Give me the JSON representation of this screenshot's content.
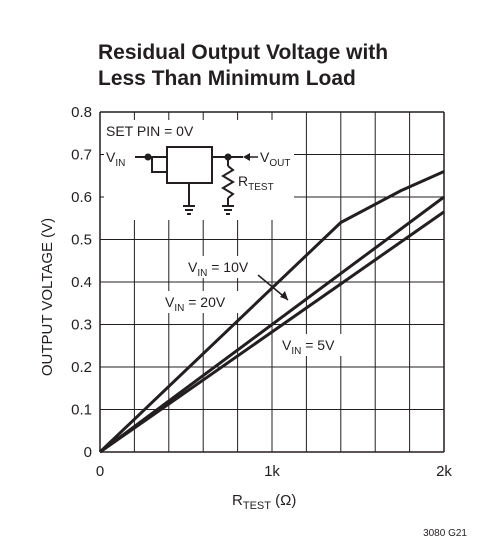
{
  "title_line1": "Residual Output Voltage with",
  "title_line2": "Less Than Minimum Load",
  "figure_code": "3080 G21",
  "inset": {
    "set_pin": "SET PIN = 0V",
    "vin": "V",
    "vin_sub": "IN",
    "vout": "V",
    "vout_sub": "OUT",
    "rtest": "R",
    "rtest_sub": "TEST"
  },
  "chart_data": {
    "type": "line",
    "xlabel_main": "R",
    "xlabel_sub": "TEST",
    "xlabel_unit": " (Ω)",
    "ylabel": "OUTPUT VOLTAGE (V)",
    "xlim": [
      0,
      2000
    ],
    "ylim": [
      0,
      0.8
    ],
    "x_ticks": [
      0,
      1000,
      2000
    ],
    "x_tick_labels": [
      "0",
      "1k",
      "2k"
    ],
    "y_ticks": [
      0,
      0.1,
      0.2,
      0.3,
      0.4,
      0.5,
      0.6,
      0.7,
      0.8
    ],
    "y_tick_labels": [
      "0",
      "0.1",
      "0.2",
      "0.3",
      "0.4",
      "0.5",
      "0.6",
      "0.7",
      "0.8"
    ],
    "grid": true,
    "series": [
      {
        "name": "V_IN = 10V",
        "label_main": "V",
        "label_sub": "IN",
        "label_rest": " = 10V",
        "x": [
          0,
          1400,
          1750,
          2000
        ],
        "y": [
          0,
          0.54,
          0.615,
          0.66
        ]
      },
      {
        "name": "V_IN = 20V",
        "label_main": "V",
        "label_sub": "IN",
        "label_rest": " = 20V",
        "x": [
          0,
          2000
        ],
        "y": [
          0,
          0.6
        ]
      },
      {
        "name": "V_IN = 5V",
        "label_main": "V",
        "label_sub": "IN",
        "label_rest": " = 5V",
        "x": [
          0,
          2000
        ],
        "y": [
          0,
          0.565
        ]
      }
    ]
  }
}
